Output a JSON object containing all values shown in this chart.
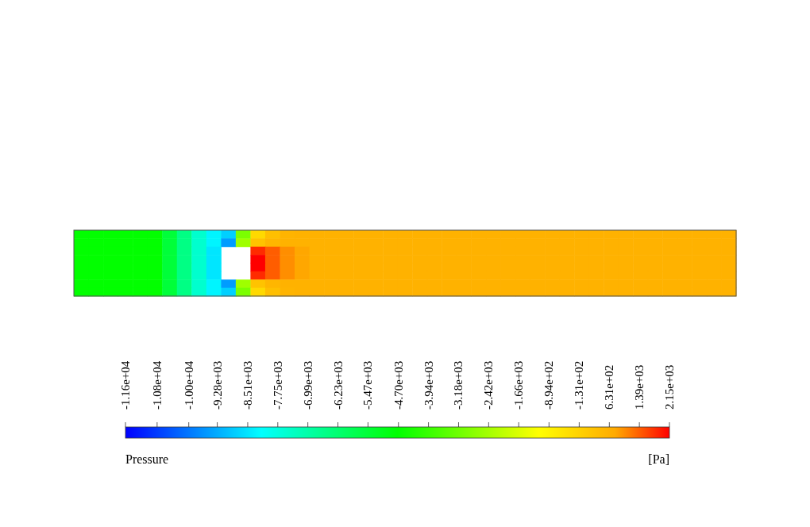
{
  "chart_data": {
    "type": "heatmap",
    "categories": [
      null,
      null,
      null,
      null,
      null,
      null,
      null,
      null,
      null,
      null,
      null,
      null,
      null,
      null,
      null,
      null,
      null,
      null,
      null,
      null,
      null,
      null,
      null,
      null,
      null,
      null,
      null,
      null,
      null,
      null,
      null,
      null,
      null,
      null,
      null,
      null,
      null,
      null,
      null,
      null,
      null,
      null,
      null,
      null,
      null
    ],
    "y_categories": [
      null,
      null,
      null,
      null,
      null,
      null,
      null,
      null
    ],
    "cells": [
      [
        -4700,
        -4700,
        -4700,
        -4700,
        -4700,
        -4700,
        -5500,
        -6500,
        -7500,
        -8300,
        -8800,
        -3000,
        -300,
        300,
        550,
        600,
        600,
        600,
        600,
        600,
        600,
        600,
        600,
        600,
        600,
        600,
        600,
        600,
        600,
        600,
        600,
        600,
        600,
        600,
        600,
        600,
        600,
        600,
        600,
        600,
        600,
        600,
        600,
        600,
        600
      ],
      [
        -4700,
        -4700,
        -4700,
        -4700,
        -4700,
        -4700,
        -5500,
        -6500,
        -7500,
        -8300,
        -9500,
        -2500,
        200,
        500,
        600,
        600,
        600,
        600,
        600,
        600,
        600,
        600,
        600,
        600,
        600,
        600,
        600,
        600,
        600,
        600,
        600,
        600,
        600,
        600,
        600,
        600,
        600,
        600,
        600,
        600,
        600,
        600,
        600,
        600,
        600
      ],
      [
        -4700,
        -4700,
        -4700,
        -4700,
        -4700,
        -4700,
        -5500,
        -6500,
        -7500,
        -8500,
        null,
        null,
        1800,
        1400,
        1000,
        800,
        600,
        600,
        600,
        600,
        600,
        600,
        600,
        600,
        600,
        600,
        600,
        600,
        600,
        600,
        600,
        600,
        600,
        600,
        600,
        600,
        600,
        600,
        600,
        600,
        600,
        600,
        600,
        600,
        600
      ],
      [
        -4700,
        -4700,
        -4700,
        -4700,
        -4700,
        -4700,
        -5500,
        -6500,
        -7500,
        -8500,
        null,
        null,
        2150,
        1400,
        1000,
        800,
        600,
        600,
        600,
        600,
        600,
        600,
        600,
        600,
        600,
        600,
        600,
        600,
        600,
        600,
        600,
        600,
        600,
        600,
        600,
        600,
        600,
        600,
        600,
        600,
        600,
        600,
        600,
        600,
        600
      ],
      [
        -4700,
        -4700,
        -4700,
        -4700,
        -4700,
        -4700,
        -5500,
        -6500,
        -7500,
        -8500,
        null,
        null,
        2150,
        1400,
        1000,
        800,
        600,
        600,
        600,
        600,
        600,
        600,
        600,
        600,
        600,
        600,
        600,
        600,
        600,
        600,
        600,
        600,
        600,
        600,
        600,
        600,
        600,
        600,
        600,
        600,
        600,
        600,
        600,
        600,
        600
      ],
      [
        -4700,
        -4700,
        -4700,
        -4700,
        -4700,
        -4700,
        -5500,
        -6500,
        -7500,
        -8500,
        null,
        null,
        1800,
        1400,
        1000,
        800,
        600,
        600,
        600,
        600,
        600,
        600,
        600,
        600,
        600,
        600,
        600,
        600,
        600,
        600,
        600,
        600,
        600,
        600,
        600,
        600,
        600,
        600,
        600,
        600,
        600,
        600,
        600,
        600,
        600
      ],
      [
        -4700,
        -4700,
        -4700,
        -4700,
        -4700,
        -4700,
        -5500,
        -6500,
        -7500,
        -8300,
        -9500,
        -2500,
        200,
        500,
        600,
        600,
        600,
        600,
        600,
        600,
        600,
        600,
        600,
        600,
        600,
        600,
        600,
        600,
        600,
        600,
        600,
        600,
        600,
        600,
        600,
        600,
        600,
        600,
        600,
        600,
        600,
        600,
        600,
        600,
        600
      ],
      [
        -4700,
        -4700,
        -4700,
        -4700,
        -4700,
        -4700,
        -5500,
        -6500,
        -7500,
        -8300,
        -8800,
        -3000,
        -300,
        300,
        550,
        600,
        600,
        600,
        600,
        600,
        600,
        600,
        600,
        600,
        600,
        600,
        600,
        600,
        600,
        600,
        600,
        600,
        600,
        600,
        600,
        600,
        600,
        600,
        600,
        600,
        600,
        600,
        600,
        600,
        600
      ]
    ],
    "clim": [
      -11600,
      2150
    ],
    "cticks": [
      {
        "value": -11600,
        "label": "-1.16e+04"
      },
      {
        "value": -10800,
        "label": "-1.08e+04"
      },
      {
        "value": -10000,
        "label": "-1.00e+04"
      },
      {
        "value": -9280,
        "label": "-9.28e+03"
      },
      {
        "value": -8510,
        "label": "-8.51e+03"
      },
      {
        "value": -7750,
        "label": "-7.75e+03"
      },
      {
        "value": -6990,
        "label": "-6.99e+03"
      },
      {
        "value": -6230,
        "label": "-6.23e+03"
      },
      {
        "value": -5470,
        "label": "-5.47e+03"
      },
      {
        "value": -4700,
        "label": "-4.70e+03"
      },
      {
        "value": -3940,
        "label": "-3.94e+03"
      },
      {
        "value": -3180,
        "label": "-3.18e+03"
      },
      {
        "value": -2420,
        "label": "-2.42e+03"
      },
      {
        "value": -1660,
        "label": "-1.66e+03"
      },
      {
        "value": -894,
        "label": "-8.94e+02"
      },
      {
        "value": -131,
        "label": "-1.31e+02"
      },
      {
        "value": 631,
        "label": "6.31e+02"
      },
      {
        "value": 1390,
        "label": "1.39e+03"
      },
      {
        "value": 2150,
        "label": "2.15e+03"
      }
    ],
    "clabel": "Pressure",
    "annotations": [
      "[Pa]"
    ]
  }
}
